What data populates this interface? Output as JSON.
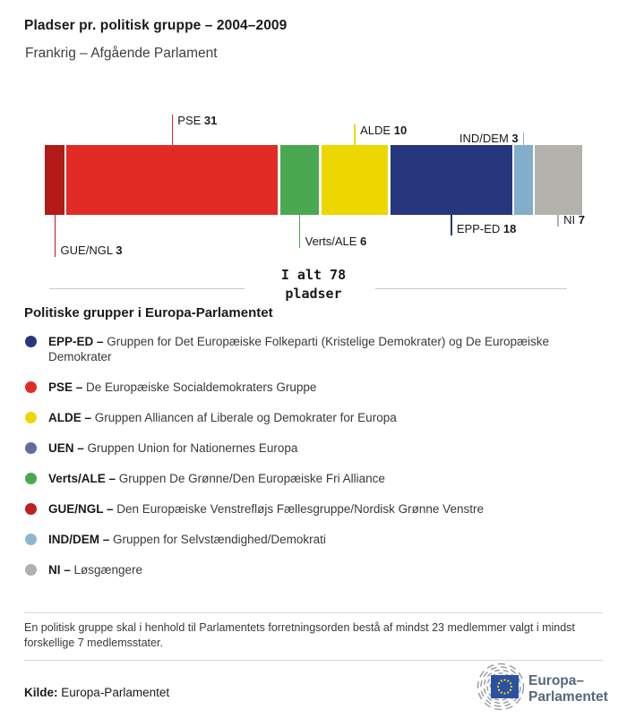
{
  "chart_data": {
    "type": "bar",
    "stacked": true,
    "orientation": "horizontal",
    "title": "Pladser pr. politisk gruppe – 2004–2009",
    "subtitle": "Frankrig – Afgående Parlament",
    "total": 78,
    "total_label": {
      "line1": "I alt 78",
      "line2": "pladser"
    },
    "groups": [
      {
        "name": "GUE/NGL",
        "seats": 3,
        "color": "#b21b18",
        "callout": {
          "side": "below",
          "len": 47
        }
      },
      {
        "name": "PSE",
        "seats": 31,
        "color": "#e32b25",
        "callout": {
          "side": "above",
          "len": 34
        }
      },
      {
        "name": "Verts/ALE",
        "seats": 6,
        "color": "#4aa950",
        "callout": {
          "side": "below",
          "len": 37
        }
      },
      {
        "name": "ALDE",
        "seats": 10,
        "color": "#ecd800",
        "callout": {
          "side": "above",
          "len": 23
        }
      },
      {
        "name": "EPP-ED",
        "seats": 18,
        "color": "#27377d",
        "callout": {
          "side": "below",
          "len": 23
        }
      },
      {
        "name": "IND/DEM",
        "seats": 3,
        "color": "#83aec9",
        "callout": {
          "side": "above",
          "len": 14,
          "align": "left"
        }
      },
      {
        "name": "NI",
        "seats": 7,
        "color": "#b3b2ad",
        "callout": {
          "side": "below",
          "len": 13
        }
      }
    ]
  },
  "legend": {
    "heading": "Politiske grupper i Europa-Parlamentet",
    "separator": "–",
    "items": [
      {
        "code": "EPP-ED",
        "color": "#27377d",
        "description": "Gruppen for Det Europæiske Folkeparti (Kristelige Demokrater) og De Europæiske Demokrater"
      },
      {
        "code": "PSE",
        "color": "#e32b25",
        "description": "De Europæiske Socialdemokraters Gruppe"
      },
      {
        "code": "ALDE",
        "color": "#ecd800",
        "description": "Gruppen Alliancen af Liberale og Demokrater for Europa"
      },
      {
        "code": "UEN",
        "color": "#5d6f9e",
        "description": "Gruppen Union for Nationernes Europa"
      },
      {
        "code": "Verts/ALE",
        "color": "#4aa950",
        "description": "Gruppen De Grønne/Den Europæiske Fri Alliance"
      },
      {
        "code": "GUE/NGL",
        "color": "#bf1d1f",
        "description": "Den Europæiske Venstrefløjs Fællesgruppe/Nordisk Grønne Venstre"
      },
      {
        "code": "IND/DEM",
        "color": "#8fb8d0",
        "description": "Gruppen for Selvstændighed/Demokrati"
      },
      {
        "code": "NI",
        "color": "#b0b0b0",
        "description": "Løsgængere"
      }
    ]
  },
  "footer": {
    "note": "En politisk gruppe skal i henhold til Parlamentets forretningsorden bestå af mindst 23 medlemmer valgt i mindst forskellige 7 medlemsstater.",
    "source_label": "Kilde:",
    "source": "Europa-Parlamentet",
    "logo_line1": "Europa–",
    "logo_line2": "Parlamentet"
  }
}
